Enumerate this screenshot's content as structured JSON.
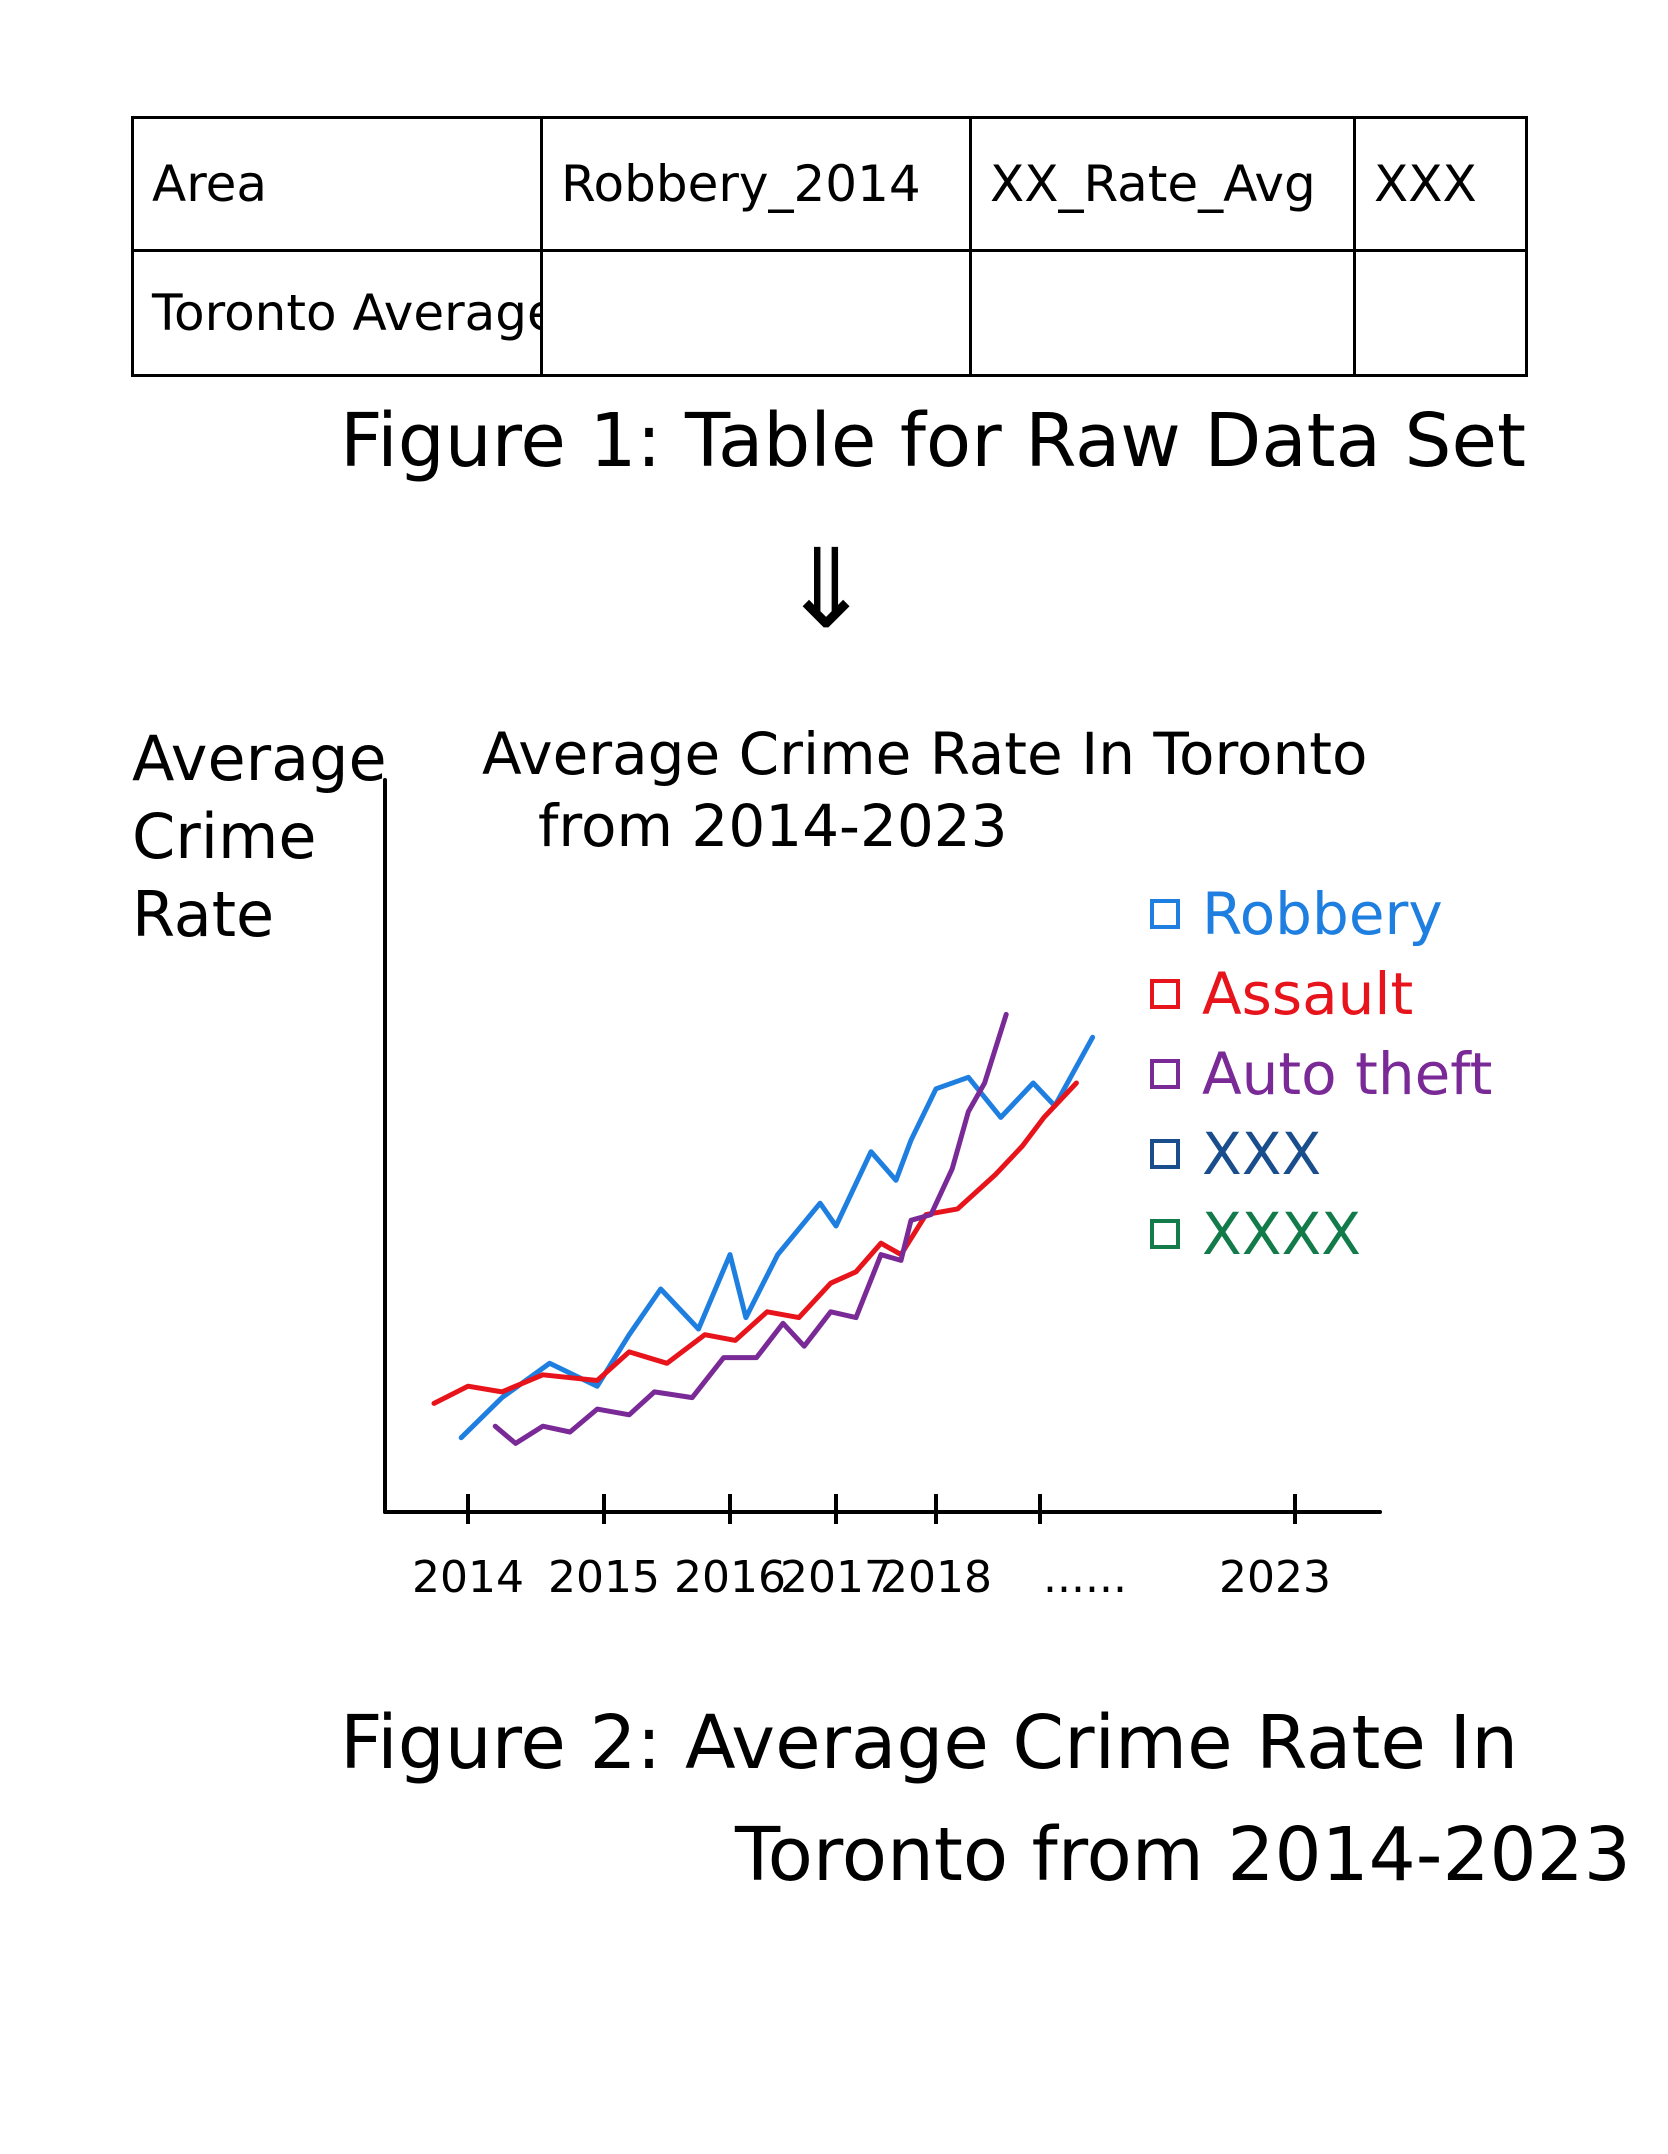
{
  "table": {
    "headers": [
      "Area",
      "Robbery_2014",
      "XX_Rate_Avg",
      "XXX"
    ],
    "rows": [
      [
        "Toronto Average",
        "",
        "",
        ""
      ]
    ]
  },
  "figure1_caption": "Figure 1: Table for Raw Data Set",
  "arrow": "⇓",
  "chart_data": {
    "type": "line",
    "title_line1": "Average Crime Rate In Toronto",
    "title_line2": "from 2014-2023",
    "ylabel_lines": [
      "Average",
      "Crime",
      "Rate"
    ],
    "xlabel": "",
    "x_ticks": [
      "2014",
      "2015",
      "2016",
      "2017",
      "2018",
      "2023"
    ],
    "x_ellipsis": "......",
    "legend": [
      {
        "name": "Robbery",
        "color": "#1f7fe0"
      },
      {
        "name": "Assault",
        "color": "#e8141c"
      },
      {
        "name": "Auto theft",
        "color": "#7a2a96"
      },
      {
        "name": "XXX",
        "color": "#1a4d8c"
      },
      {
        "name": "XXXX",
        "color": "#137a4a"
      }
    ],
    "x_range": [
      2013.2,
      2024
    ],
    "y_range": [
      0,
      100
    ],
    "series": [
      {
        "name": "Robbery",
        "color": "#1f7fe0",
        "x": [
          2013.95,
          2014.25,
          2014.6,
          2014.95,
          2015.2,
          2015.45,
          2015.75,
          2016.0,
          2016.15,
          2016.45,
          2016.85,
          2017.0,
          2017.35,
          2017.6,
          2017.75,
          2018.0,
          2018.3,
          2018.6,
          2018.9,
          2019.1,
          2019.45
        ],
        "y": [
          6,
          13,
          19,
          15,
          24,
          32,
          25,
          38,
          27,
          38,
          47,
          43,
          56,
          51,
          58,
          67,
          69,
          62,
          68,
          64,
          76
        ]
      },
      {
        "name": "Assault",
        "color": "#e8141c",
        "x": [
          2013.75,
          2014.0,
          2014.25,
          2014.55,
          2014.95,
          2015.2,
          2015.5,
          2015.8,
          2016.05,
          2016.35,
          2016.65,
          2016.95,
          2017.2,
          2017.45,
          2017.65,
          2017.9,
          2018.2,
          2018.55,
          2018.8,
          2019.0,
          2019.3
        ],
        "y": [
          12,
          15,
          14,
          17,
          16,
          21,
          19,
          24,
          23,
          28,
          27,
          33,
          35,
          40,
          38,
          45,
          46,
          52,
          57,
          62,
          68
        ]
      },
      {
        "name": "Auto theft",
        "color": "#7a2a96",
        "x": [
          2014.2,
          2014.35,
          2014.55,
          2014.75,
          2014.95,
          2015.2,
          2015.4,
          2015.7,
          2015.95,
          2016.25,
          2016.5,
          2016.7,
          2016.95,
          2017.2,
          2017.45,
          2017.65,
          2017.75,
          2017.95,
          2018.15,
          2018.3,
          2018.45,
          2018.65
        ],
        "y": [
          8,
          5,
          8,
          7,
          11,
          10,
          14,
          13,
          20,
          20,
          26,
          22,
          28,
          27,
          38,
          37,
          44,
          45,
          53,
          63,
          68,
          80
        ]
      }
    ]
  },
  "figure2_caption_line1": "Figure 2: Average Crime Rate In",
  "figure2_caption_line2": "Toronto from 2014-2023"
}
